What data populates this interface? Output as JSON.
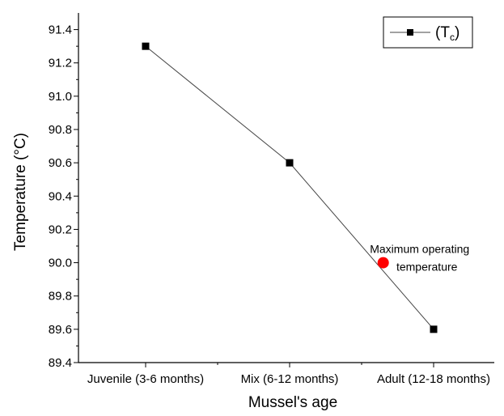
{
  "chart_data": {
    "type": "line",
    "categories": [
      "Juvenile (3-6 months)",
      "Mix (6-12 months)",
      "Adult (12-18 months)"
    ],
    "series": [
      {
        "name_main": "(T",
        "name_sub": "c",
        "name_end": ")",
        "values": [
          91.3,
          90.6,
          89.6
        ],
        "color": "#000000"
      }
    ],
    "xlabel": "Mussel's age",
    "ylabel": "Temperature (°C)",
    "ylim": [
      89.4,
      91.5
    ],
    "yticks": [
      "89.4",
      "89.6",
      "89.8",
      "90.0",
      "90.2",
      "90.4",
      "90.6",
      "90.8",
      "91.0",
      "91.2",
      "91.4"
    ],
    "annotation": {
      "x_category_position": 2.65,
      "y": 90.0,
      "color": "#ff0000",
      "line1": "Maximum operating",
      "line2": "temperature"
    },
    "legend_position": "top-right",
    "grid": false
  }
}
